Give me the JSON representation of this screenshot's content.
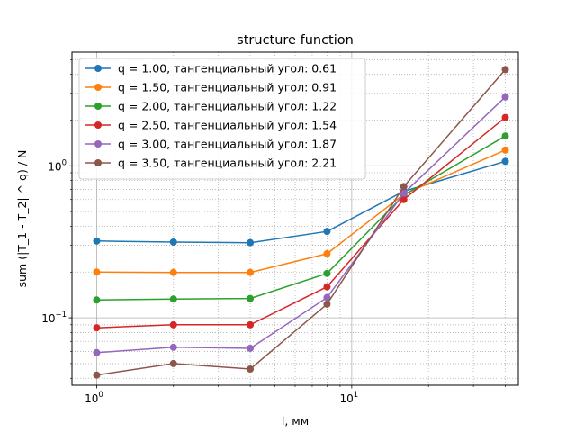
{
  "chart_data": {
    "type": "line",
    "title": "structure function",
    "xlabel": "l, мм",
    "ylabel": "sum (|T_1 - T_2| ^ q) / N",
    "xscale": "log",
    "yscale": "log",
    "xlim": [
      0.8,
      45
    ],
    "ylim": [
      0.036,
      5.6
    ],
    "x": [
      1,
      2,
      4,
      8,
      16,
      40
    ],
    "xticks": [
      {
        "value": 1,
        "base": "10",
        "exp": "0"
      },
      {
        "value": 10,
        "base": "10",
        "exp": "1"
      }
    ],
    "yticks": [
      {
        "value": 0.1,
        "base": "10",
        "exp": "−1"
      },
      {
        "value": 1,
        "base": "10",
        "exp": "0"
      }
    ],
    "grid": "major-solid, minor-dotted",
    "legend_position": "top-left",
    "series": [
      {
        "name": "q = 1.00, тангенциальный угол: 0.61",
        "color": "#1f77b4",
        "values": [
          0.32,
          0.315,
          0.312,
          0.37,
          0.68,
          1.07
        ]
      },
      {
        "name": "q = 1.50, тангенциальный угол: 0.91",
        "color": "#ff7f0e",
        "values": [
          0.2,
          0.199,
          0.199,
          0.264,
          0.65,
          1.27
        ]
      },
      {
        "name": "q = 2.00, тангенциальный угол: 1.22",
        "color": "#2ca02c",
        "values": [
          0.131,
          0.133,
          0.134,
          0.196,
          0.64,
          1.57
        ]
      },
      {
        "name": "q = 2.50, тангенциальный угол: 1.54",
        "color": "#d62728",
        "values": [
          0.086,
          0.09,
          0.09,
          0.16,
          0.6,
          2.08
        ]
      },
      {
        "name": "q = 3.00, тангенциальный угол: 1.87",
        "color": "#9467bd",
        "values": [
          0.059,
          0.064,
          0.063,
          0.136,
          0.66,
          2.84
        ]
      },
      {
        "name": "q = 3.50, тангенциальный угол: 2.21",
        "color": "#8c564b",
        "values": [
          0.042,
          0.05,
          0.046,
          0.123,
          0.73,
          4.3
        ]
      }
    ]
  }
}
